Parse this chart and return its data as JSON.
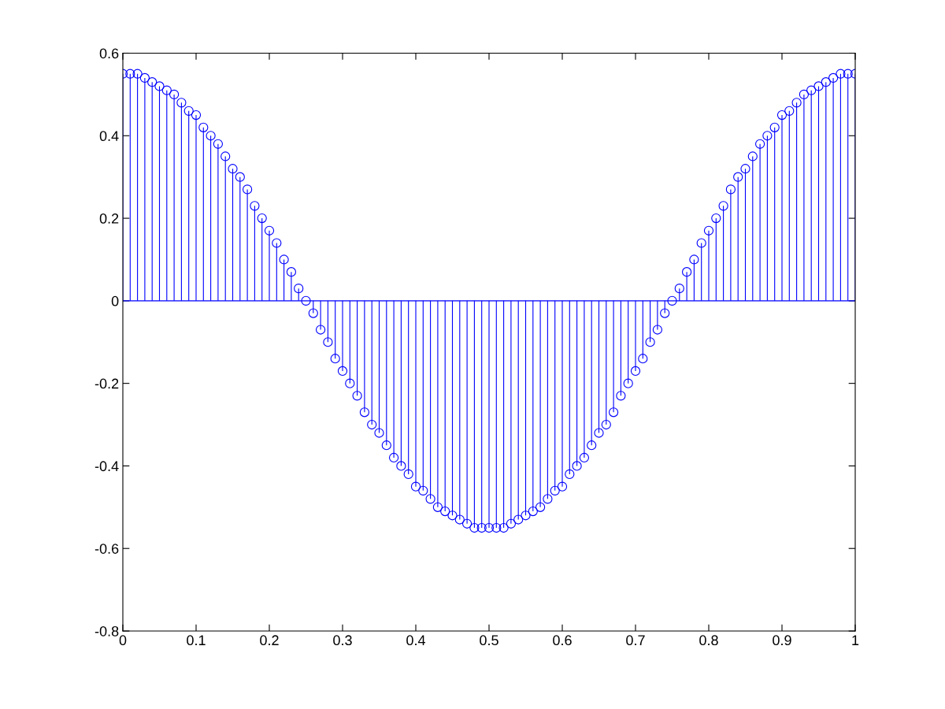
{
  "chart_data": {
    "type": "lollipop",
    "color": "#0000ff",
    "marker": "circle",
    "x": [
      0,
      0.01,
      0.02,
      0.03,
      0.04,
      0.05,
      0.06,
      0.07,
      0.08,
      0.09,
      0.1,
      0.11,
      0.12,
      0.13,
      0.14,
      0.15,
      0.16,
      0.17,
      0.18,
      0.19,
      0.2,
      0.21,
      0.22,
      0.23,
      0.24,
      0.25,
      0.26,
      0.27,
      0.28,
      0.29,
      0.3,
      0.31,
      0.32,
      0.33,
      0.34,
      0.35,
      0.36,
      0.37,
      0.38,
      0.39,
      0.4,
      0.41,
      0.42,
      0.43,
      0.44,
      0.45,
      0.46,
      0.47,
      0.48,
      0.49,
      0.5,
      0.51,
      0.52,
      0.53,
      0.54,
      0.55,
      0.56,
      0.57,
      0.58,
      0.59,
      0.6,
      0.61,
      0.62,
      0.63,
      0.64,
      0.65,
      0.66,
      0.67,
      0.68,
      0.69,
      0.7,
      0.71,
      0.72,
      0.73,
      0.74,
      0.75,
      0.76,
      0.77,
      0.78,
      0.79,
      0.8,
      0.81,
      0.82,
      0.83,
      0.84,
      0.85,
      0.86,
      0.87,
      0.88,
      0.89,
      0.9,
      0.91,
      0.92,
      0.93,
      0.94,
      0.95,
      0.96,
      0.97,
      0.98,
      0.99,
      1
    ],
    "values": [
      0.55,
      0.55,
      0.55,
      0.54,
      0.53,
      0.52,
      0.51,
      0.5,
      0.48,
      0.46,
      0.45,
      0.42,
      0.4,
      0.38,
      0.35,
      0.32,
      0.3,
      0.27,
      0.23,
      0.2,
      0.17,
      0.14,
      0.1,
      0.07,
      0.03,
      0,
      -0.03,
      -0.07,
      -0.1,
      -0.14,
      -0.17,
      -0.2,
      -0.23,
      -0.27,
      -0.3,
      -0.32,
      -0.35,
      -0.38,
      -0.4,
      -0.42,
      -0.45,
      -0.46,
      -0.48,
      -0.5,
      -0.51,
      -0.52,
      -0.53,
      -0.54,
      -0.55,
      -0.55,
      -0.55,
      -0.55,
      -0.55,
      -0.54,
      -0.53,
      -0.52,
      -0.51,
      -0.5,
      -0.48,
      -0.46,
      -0.45,
      -0.42,
      -0.4,
      -0.38,
      -0.35,
      -0.32,
      -0.3,
      -0.27,
      -0.23,
      -0.2,
      -0.17,
      -0.14,
      -0.1,
      -0.07,
      -0.03,
      0,
      0.03,
      0.07,
      0.1,
      0.14,
      0.17,
      0.2,
      0.23,
      0.27,
      0.3,
      0.32,
      0.35,
      0.38,
      0.4,
      0.42,
      0.45,
      0.46,
      0.48,
      0.5,
      0.51,
      0.52,
      0.53,
      0.54,
      0.55,
      0.55,
      0.55
    ],
    "xlim": [
      0,
      1
    ],
    "xticks": [
      0,
      0.1,
      0.2,
      0.3,
      0.4,
      0.5,
      0.6,
      0.7,
      0.8,
      0.9,
      1
    ],
    "ylim": [
      -0.8,
      0.6
    ],
    "yticks": [
      -0.8,
      -0.6,
      -0.4,
      -0.2,
      0,
      0.2,
      0.4,
      0.6
    ],
    "ref_lines": [
      {
        "axis": "y",
        "value": 0,
        "color": "#0000ff"
      }
    ],
    "grid": false
  }
}
